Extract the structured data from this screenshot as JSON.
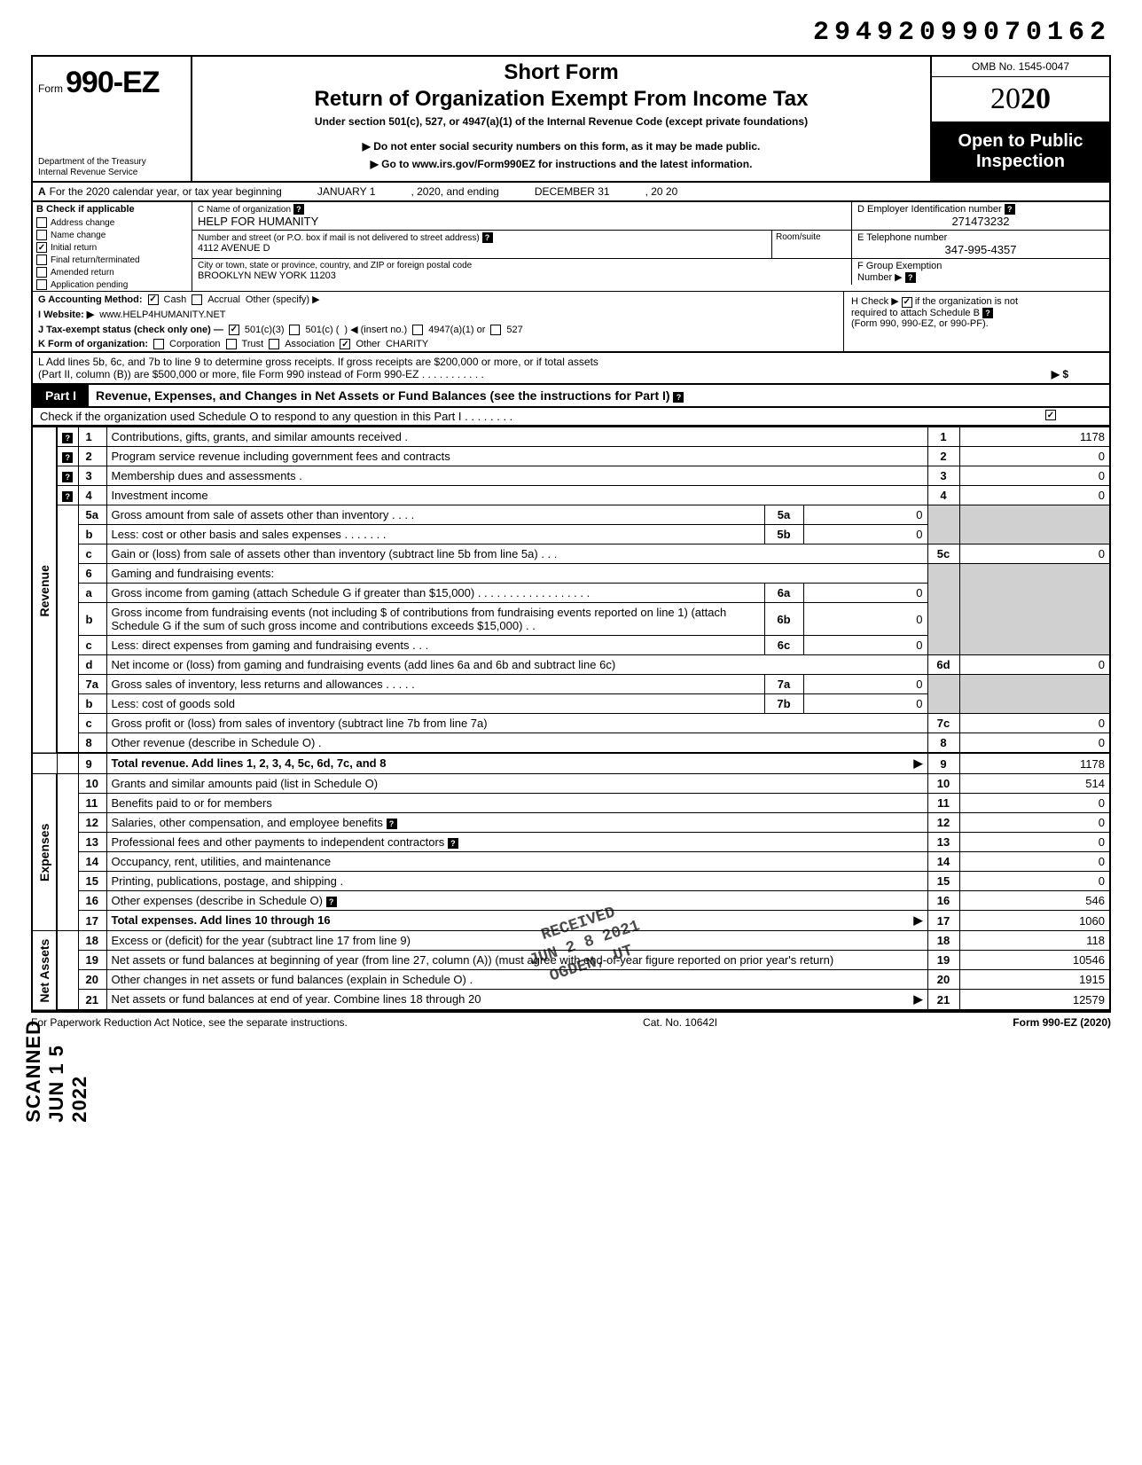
{
  "top_number": "29492099070162",
  "header": {
    "form_word": "Form",
    "form_number": "990-EZ",
    "dept1": "Department of the Treasury",
    "dept2": "Internal Revenue Service",
    "short_form": "Short Form",
    "return_title": "Return of Organization Exempt From Income Tax",
    "under_section": "Under section 501(c), 527, or 4947(a)(1) of the Internal Revenue Code (except private foundations)",
    "do_not_enter": "▶ Do not enter social security numbers on this form, as it may be made public.",
    "goto": "▶ Go to www.irs.gov/Form990EZ for instructions and the latest information.",
    "omb": "OMB No. 1545-0047",
    "year_prefix": "20",
    "year_bold": "20",
    "open1": "Open to Public",
    "open2": "Inspection"
  },
  "row_a": {
    "label": "A",
    "text": "For the 2020 calendar year, or tax year beginning",
    "begin": "JANUARY 1",
    "mid": ", 2020, and ending",
    "end": "DECEMBER 31",
    "tail": ", 20   20"
  },
  "col_b": {
    "header": "B  Check if applicable",
    "opts": [
      {
        "label": "Address change",
        "checked": false
      },
      {
        "label": "Name change",
        "checked": false
      },
      {
        "label": "Initial return",
        "checked": true
      },
      {
        "label": "Final return/terminated",
        "checked": false
      },
      {
        "label": "Amended return",
        "checked": false
      },
      {
        "label": "Application pending",
        "checked": false
      }
    ]
  },
  "name_block": {
    "c_label": "C  Name of organization",
    "c_val": "HELP FOR HUMANITY",
    "addr_label": "Number and street (or P.O. box if mail is not delivered to street address)",
    "addr_val": "4112 AVENUE D",
    "room_label": "Room/suite",
    "city_label": "City or town, state or province, country, and ZIP or foreign postal code",
    "city_val": "BROOKLYN NEW YORK 11203",
    "d_label": "D Employer Identification number",
    "d_val": "271473232",
    "e_label": "E  Telephone number",
    "e_val": "347-995-4357",
    "f_label": "F  Group Exemption",
    "f_label2": "Number ▶"
  },
  "ghijk": {
    "g": "G  Accounting Method:",
    "g_cash": "Cash",
    "g_accrual": "Accrual",
    "g_other": "Other (specify) ▶",
    "i": "I   Website: ▶",
    "i_val": "www.HELP4HUMANITY.NET",
    "j": "J  Tax-exempt status (check only one) —",
    "j_501c3": "501(c)(3)",
    "j_501c": "501(c) (",
    "j_insert": ") ◀ (insert no.)",
    "j_4947": "4947(a)(1) or",
    "j_527": "527",
    "k": "K  Form of organization:",
    "k_corp": "Corporation",
    "k_trust": "Trust",
    "k_assoc": "Association",
    "k_other": "Other",
    "k_other_val": "CHARITY",
    "h1": "H  Check ▶",
    "h2": "if the organization is not",
    "h3": "required to attach Schedule B",
    "h4": "(Form 990, 990-EZ, or 990-PF)."
  },
  "row_l": {
    "text1": "L  Add lines 5b, 6c, and 7b to line 9 to determine gross receipts. If gross receipts are $200,000 or more, or if total assets",
    "text2": "(Part II, column (B)) are $500,000 or more, file Form 990 instead of Form 990-EZ .   .   .   .   .   .   .   .   .   .   .",
    "arrow": "▶   $"
  },
  "part1": {
    "label": "Part I",
    "title": "Revenue, Expenses, and Changes in Net Assets or Fund Balances (see the instructions for Part I)",
    "sub": "Check if the organization used Schedule O to respond to any question in this Part I .   .   .   .   .   .   .   ."
  },
  "sections": {
    "revenue": "Revenue",
    "expenses": "Expenses",
    "netassets": "Net Assets"
  },
  "lines": [
    {
      "n": "1",
      "desc": "Contributions, gifts, grants, and similar amounts received .",
      "val": "1178",
      "q": true
    },
    {
      "n": "2",
      "desc": "Program service revenue including government fees and contracts",
      "val": "0",
      "q": true
    },
    {
      "n": "3",
      "desc": "Membership dues and assessments .",
      "val": "0",
      "q": true
    },
    {
      "n": "4",
      "desc": "Investment income",
      "val": "0",
      "q": true
    },
    {
      "n": "5a",
      "desc": "Gross amount from sale of assets other than inventory   .   .   .   .",
      "sub": "5a",
      "subval": "0"
    },
    {
      "n": "b",
      "desc": "Less: cost or other basis and sales expenses .   .   .   .   .   .   .",
      "sub": "5b",
      "subval": "0"
    },
    {
      "n": "c",
      "desc": "Gain or (loss) from sale of assets other than inventory (subtract line 5b from line 5a)   .   .   .",
      "line": "5c",
      "val": "0"
    },
    {
      "n": "6",
      "desc": "Gaming and fundraising events:"
    },
    {
      "n": "a",
      "desc": "Gross income from gaming (attach Schedule G if greater than $15,000) .   .   .   .   .   .   .   .   .   .   .   .   .   .   .   .   .   .",
      "sub": "6a",
      "subval": "0"
    },
    {
      "n": "b",
      "desc": "Gross income from fundraising events (not including  $                    of contributions from fundraising events reported on line 1) (attach Schedule G if the sum of such gross income and contributions exceeds $15,000) .   .",
      "sub": "6b",
      "subval": "0"
    },
    {
      "n": "c",
      "desc": "Less: direct expenses from gaming and fundraising events   .   .   .",
      "sub": "6c",
      "subval": "0"
    },
    {
      "n": "d",
      "desc": "Net income or (loss) from gaming and fundraising events (add lines 6a and 6b and subtract line 6c)",
      "line": "6d",
      "val": "0"
    },
    {
      "n": "7a",
      "desc": "Gross sales of inventory, less returns and allowances .   .   .   .   .",
      "sub": "7a",
      "subval": "0"
    },
    {
      "n": "b",
      "desc": "Less: cost of goods sold",
      "sub": "7b",
      "subval": "0"
    },
    {
      "n": "c",
      "desc": "Gross profit or (loss) from sales of inventory (subtract line 7b from line 7a)",
      "line": "7c",
      "val": "0"
    },
    {
      "n": "8",
      "desc": "Other revenue (describe in Schedule O) .",
      "line": "8",
      "val": "0"
    },
    {
      "n": "9",
      "desc": "Total revenue. Add lines 1, 2, 3, 4, 5c, 6d, 7c, and 8",
      "line": "9",
      "val": "1178",
      "bold": true,
      "arrow": true
    },
    {
      "n": "10",
      "desc": "Grants and similar amounts paid (list in Schedule O)",
      "line": "10",
      "val": "514"
    },
    {
      "n": "11",
      "desc": "Benefits paid to or for members",
      "line": "11",
      "val": "0"
    },
    {
      "n": "12",
      "desc": "Salaries, other compensation, and employee benefits",
      "line": "12",
      "val": "0",
      "q": true
    },
    {
      "n": "13",
      "desc": "Professional fees and other payments to independent contractors",
      "line": "13",
      "val": "0",
      "q": true
    },
    {
      "n": "14",
      "desc": "Occupancy, rent, utilities, and maintenance",
      "line": "14",
      "val": "0"
    },
    {
      "n": "15",
      "desc": "Printing, publications, postage, and shipping .",
      "line": "15",
      "val": "0"
    },
    {
      "n": "16",
      "desc": "Other expenses (describe in Schedule O)",
      "line": "16",
      "val": "546",
      "q": true
    },
    {
      "n": "17",
      "desc": "Total expenses. Add lines 10 through 16",
      "line": "17",
      "val": "1060",
      "bold": true,
      "arrow": true
    },
    {
      "n": "18",
      "desc": "Excess or (deficit) for the year (subtract line 17 from line 9)",
      "line": "18",
      "val": "118"
    },
    {
      "n": "19",
      "desc": "Net assets or fund balances at beginning of year (from line 27, column (A)) (must agree with end-of-year figure reported on prior year's return)",
      "line": "19",
      "val": "10546"
    },
    {
      "n": "20",
      "desc": "Other changes in net assets or fund balances (explain in Schedule O) .",
      "line": "20",
      "val": "1915"
    },
    {
      "n": "21",
      "desc": "Net assets or fund balances at end of year. Combine lines 18 through 20",
      "line": "21",
      "val": "12579",
      "arrow": true
    }
  ],
  "footer": {
    "left": "For Paperwork Reduction Act Notice, see the separate instructions.",
    "mid": "Cat. No. 10642I",
    "right": "Form 990-EZ (2020)"
  },
  "stamps": {
    "received": "RECEIVED\nJUN 2 8 2021\nOGDEN, UT",
    "scanned": "SCANNED JUN 1 5 2022"
  },
  "colors": {
    "black": "#000000",
    "white": "#ffffff",
    "shade": "#d0d0d0"
  }
}
